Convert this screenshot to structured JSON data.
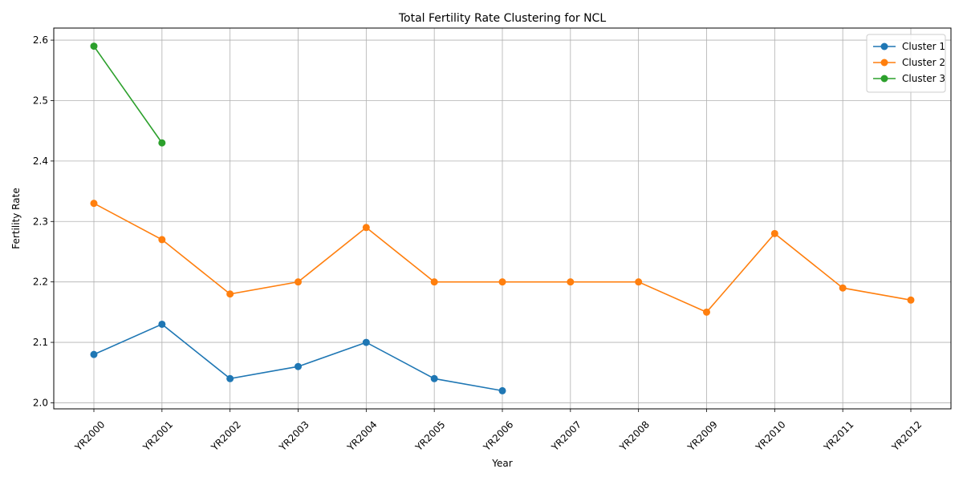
{
  "chart_data": {
    "type": "line",
    "title": "Total Fertility Rate Clustering for NCL",
    "xlabel": "Year",
    "ylabel": "Fertility Rate",
    "categories": [
      "YR2000",
      "YR2001",
      "YR2002",
      "YR2003",
      "YR2004",
      "YR2005",
      "YR2006",
      "YR2007",
      "YR2008",
      "YR2009",
      "YR2010",
      "YR2011",
      "YR2012"
    ],
    "ylim": [
      1.99,
      2.62
    ],
    "yticks": [
      "2.0",
      "2.1",
      "2.2",
      "2.3",
      "2.4",
      "2.5",
      "2.6"
    ],
    "grid": true,
    "legend_position": "top-right",
    "series": [
      {
        "name": "Cluster 1",
        "color": "#1f77b4",
        "values": [
          2.08,
          2.13,
          2.04,
          2.06,
          2.1,
          2.04,
          2.02,
          null,
          null,
          null,
          null,
          null,
          null
        ]
      },
      {
        "name": "Cluster 2",
        "color": "#ff7f0e",
        "values": [
          2.33,
          2.27,
          2.18,
          2.2,
          2.29,
          2.2,
          2.2,
          2.2,
          2.2,
          2.15,
          2.28,
          2.19,
          2.17
        ]
      },
      {
        "name": "Cluster 3",
        "color": "#2ca02c",
        "values": [
          2.59,
          2.43,
          null,
          null,
          null,
          null,
          null,
          null,
          null,
          null,
          null,
          null,
          null
        ]
      }
    ]
  }
}
